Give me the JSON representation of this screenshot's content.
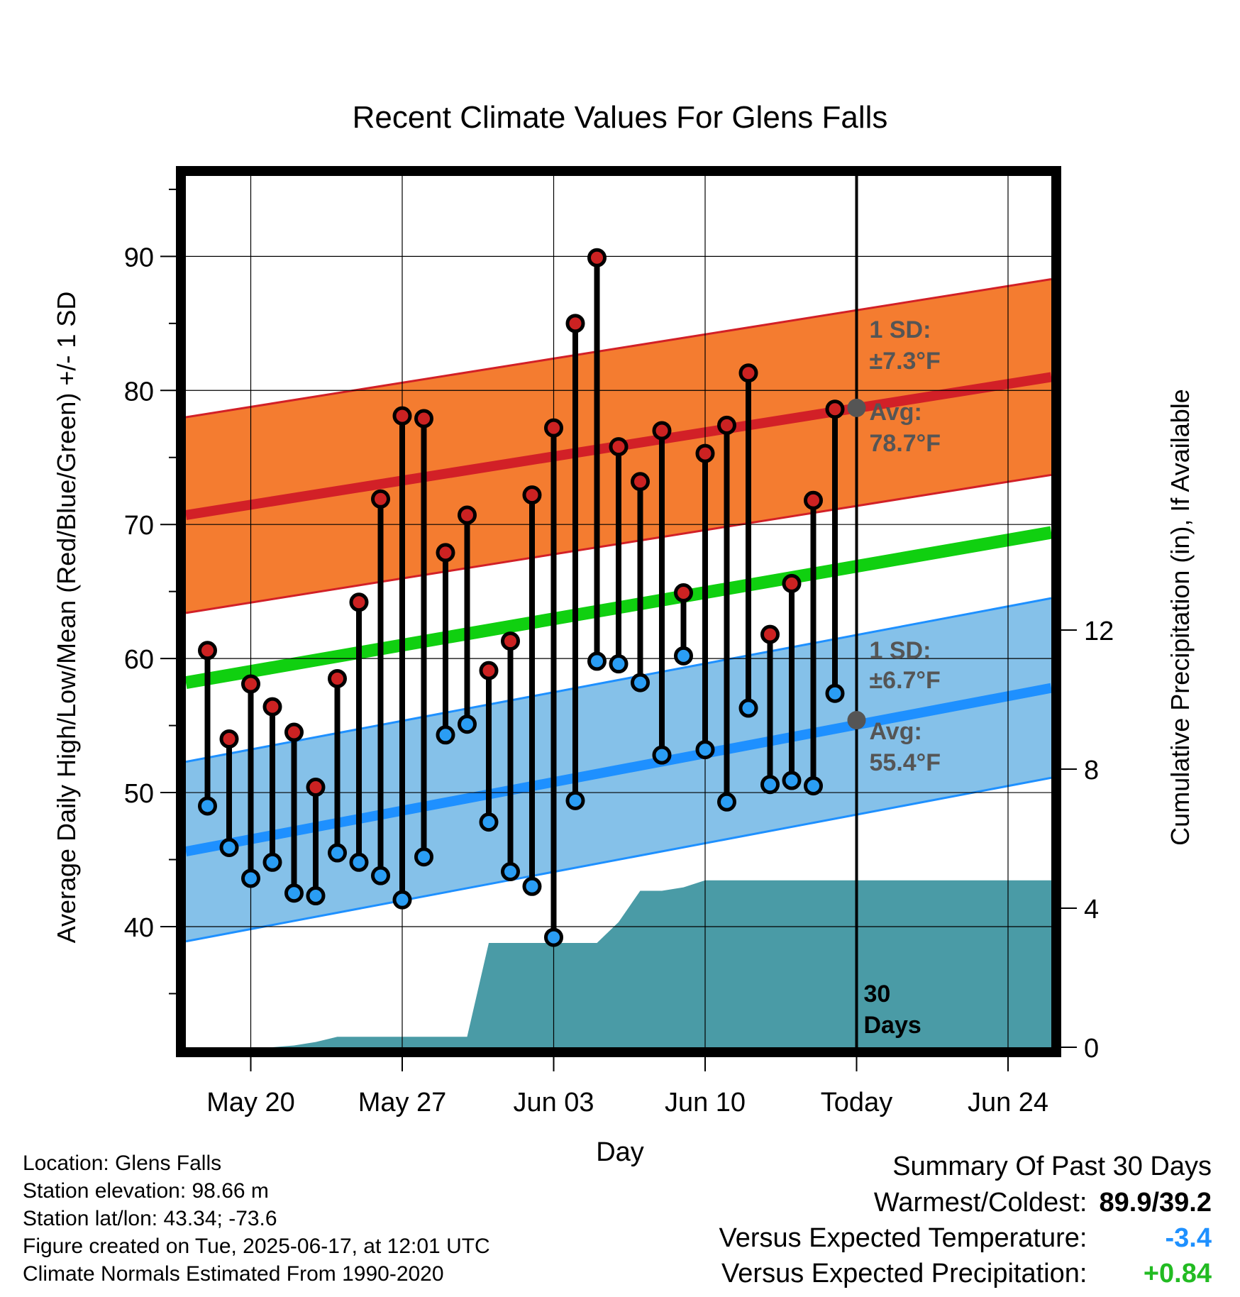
{
  "chart_data": {
    "type": "line",
    "title": "Recent Climate Values For Glens Falls",
    "xlabel": "Day",
    "ylabel": "Average Daily High/Low/Mean (Red/Blue/Green) +/- 1 SD",
    "y2label": "Cumulative Precipitation (in), If Available",
    "x_ticks": [
      "May 20",
      "May 27",
      "Jun 03",
      "Jun 10",
      "Today",
      "Jun 24"
    ],
    "y_ticks": [
      40,
      50,
      60,
      70,
      80,
      90
    ],
    "y2_ticks": [
      0,
      4,
      8,
      12
    ],
    "x_range": [
      "May 17",
      "Jun 26"
    ],
    "ylim": [
      31,
      96
    ],
    "y2lim": [
      0,
      12
    ],
    "grid": true,
    "days": [
      "May 18",
      "May 19",
      "May 20",
      "May 21",
      "May 22",
      "May 23",
      "May 24",
      "May 25",
      "May 26",
      "May 27",
      "May 28",
      "May 29",
      "May 30",
      "May 31",
      "Jun 01",
      "Jun 02",
      "Jun 03",
      "Jun 04",
      "Jun 05",
      "Jun 06",
      "Jun 07",
      "Jun 08",
      "Jun 09",
      "Jun 10",
      "Jun 11",
      "Jun 12",
      "Jun 13",
      "Jun 14",
      "Jun 15",
      "Jun 16"
    ],
    "series": [
      {
        "values": [
          60.6,
          54.0,
          58.1,
          56.4,
          54.5,
          50.4,
          58.5,
          64.2,
          71.9,
          78.1,
          77.9,
          67.9,
          70.7,
          59.1,
          61.3,
          72.2,
          77.2,
          85.0,
          89.9,
          75.8,
          73.2,
          77.0,
          64.9,
          75.3,
          77.4,
          81.3,
          61.8,
          65.6,
          71.8,
          78.6
        ]
      },
      {
        "values": [
          49.0,
          45.9,
          43.6,
          44.8,
          42.5,
          42.3,
          45.5,
          44.8,
          43.8,
          42.0,
          45.2,
          54.3,
          55.1,
          47.8,
          44.1,
          43.0,
          39.2,
          49.4,
          59.8,
          59.6,
          58.2,
          52.8,
          60.2,
          53.2,
          49.3,
          56.3,
          50.6,
          50.9,
          50.5,
          57.4
        ]
      }
    ],
    "normal_high": {
      "start": 70.7,
      "end": 81.0
    },
    "normal_low": {
      "start": 45.6,
      "end": 57.8
    },
    "normal_mean": {
      "start": 58.2,
      "end": 69.4
    },
    "high_sd": 7.3,
    "low_sd": 6.7,
    "precip_x": [
      "May 18",
      "May 21",
      "May 22",
      "May 23",
      "May 24",
      "May 25",
      "May 26",
      "May 27",
      "May 28",
      "May 29",
      "May 30",
      "May 31",
      "Jun 01",
      "Jun 02",
      "Jun 03",
      "Jun 04",
      "Jun 05",
      "Jun 06",
      "Jun 07",
      "Jun 08",
      "Jun 09",
      "Jun 10",
      "Jun 11",
      "Jun 12",
      "Jun 13",
      "Jun 14",
      "Jun 15",
      "Jun 16",
      "Jun 17",
      "Jun 26"
    ],
    "precip_cumulative": [
      0.0,
      0.0,
      0.05,
      0.15,
      0.3,
      0.3,
      0.3,
      0.3,
      0.3,
      0.3,
      0.3,
      3.0,
      3.0,
      3.0,
      3.0,
      3.0,
      3.0,
      3.6,
      4.5,
      4.5,
      4.6,
      4.8,
      4.8,
      4.8,
      4.8,
      4.8,
      4.8,
      4.8,
      4.8,
      4.8
    ],
    "today_marker": "Today",
    "annotations": {
      "high_sd_title": "1 SD:",
      "high_sd_value": "±7.3°F",
      "high_avg_title": "Avg:",
      "high_avg_value": "78.7°F",
      "low_sd_title": "1 SD:",
      "low_sd_value": "±6.7°F",
      "low_avg_title": "Avg:",
      "low_avg_value": "55.4°F",
      "days_count": "30",
      "days_label": "Days"
    },
    "today_high_avg": 78.7,
    "today_low_avg": 55.4
  },
  "colors": {
    "high_band": "#f47c30",
    "high_line": "#d22027",
    "high_edge": "#d22027",
    "low_band": "#85c1e9",
    "low_line": "#1e90ff",
    "low_edge": "#1e90ff",
    "mean_line": "#10d010",
    "precip_fill": "#4a9ba6",
    "high_dot": "#cc2222",
    "low_dot": "#2a9df4",
    "avg_dot": "#555555",
    "annotation_text": "#555555",
    "cold_value": "#1e90ff",
    "wet_value": "#22bb22"
  },
  "info": {
    "location": "Location: Glens Falls",
    "elevation": "Station elevation: 98.66 m",
    "latlon": "Station lat/lon: 43.34; -73.6",
    "created": "Figure created on Tue, 2025-06-17, at 12:01 UTC",
    "normals": "Climate Normals Estimated From 1990-2020"
  },
  "summary": {
    "title": "Summary Of Past 30 Days",
    "warm_cold_label": "Warmest/Coldest:",
    "warm_cold_value": "89.9/39.2",
    "temp_label": "Versus Expected Temperature:",
    "temp_value": "-3.4",
    "precip_label": "Versus Expected Precipitation:",
    "precip_value": "+0.84"
  }
}
